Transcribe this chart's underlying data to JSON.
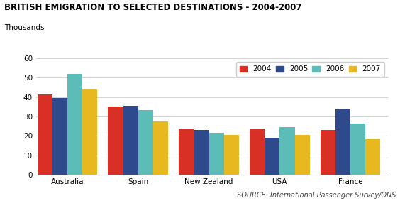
{
  "title": "BRITISH EMIGRATION TO SELECTED DESTINATIONS - 2004-2007",
  "ylabel": "Thousands",
  "source": "SOURCE: International Passenger Survey/ONS",
  "categories": [
    "Australia",
    "Spain",
    "New Zealand",
    "USA",
    "France"
  ],
  "years": [
    "2004",
    "2005",
    "2006",
    "2007"
  ],
  "values": {
    "2004": [
      41.5,
      35.0,
      23.5,
      24.0,
      23.0
    ],
    "2005": [
      39.5,
      35.5,
      23.0,
      19.0,
      34.0
    ],
    "2006": [
      52.0,
      33.5,
      21.5,
      24.5,
      26.5
    ],
    "2007": [
      44.0,
      27.5,
      20.5,
      20.5,
      18.5
    ]
  },
  "colors": {
    "2004": "#d93025",
    "2005": "#2e4a8c",
    "2006": "#5bbcb8",
    "2007": "#e8b820"
  },
  "ylim": [
    0,
    60
  ],
  "yticks": [
    0,
    10,
    20,
    30,
    40,
    50,
    60
  ],
  "background_color": "#ffffff",
  "grid_color": "#cccccc",
  "title_fontsize": 8.5,
  "label_fontsize": 7.5,
  "tick_fontsize": 7.5,
  "legend_fontsize": 7.5,
  "source_fontsize": 7
}
